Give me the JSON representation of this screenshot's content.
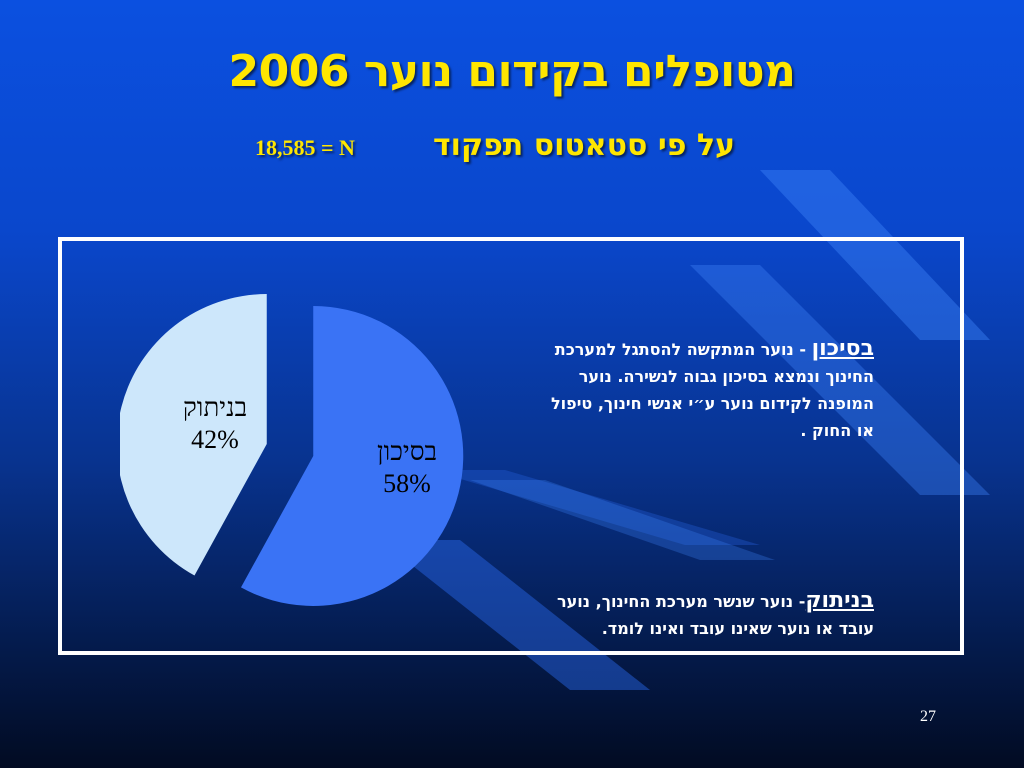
{
  "title": "מטופלים בקידום נוער 2006",
  "subtitle": {
    "status": "על פי סטאטוס תפקוד",
    "n": "18,585 = N"
  },
  "chart_data": {
    "type": "pie",
    "categories": [
      "בסיכון",
      "בניתוק"
    ],
    "values": [
      58,
      42
    ],
    "value_labels": [
      "58%",
      "42%"
    ],
    "colors": [
      "#3a73f5",
      "#cde7fb"
    ],
    "exploded": true
  },
  "definitions": {
    "risk": {
      "term": "בסיכון",
      "dash": " - ",
      "text": "נוער המתקשה להסתגל למערכת החינוך ונמצא בסיכון גבוה לנשירה. נוער המופנה לקידום נוער ע״י אנשי חינוך, טיפול או החוק ."
    },
    "disconnect": {
      "term": "בניתוק",
      "dash": "- ",
      "text": "נוער שנשר מערכת החינוך, נוער עובד או נוער שאינו עובד ואינו לומד."
    }
  },
  "slide_number": "27",
  "colors": {
    "title": "#ffe600",
    "background_top": "#0b50e0",
    "background_bottom": "#020b22",
    "stripe": "#4f8ff8"
  }
}
